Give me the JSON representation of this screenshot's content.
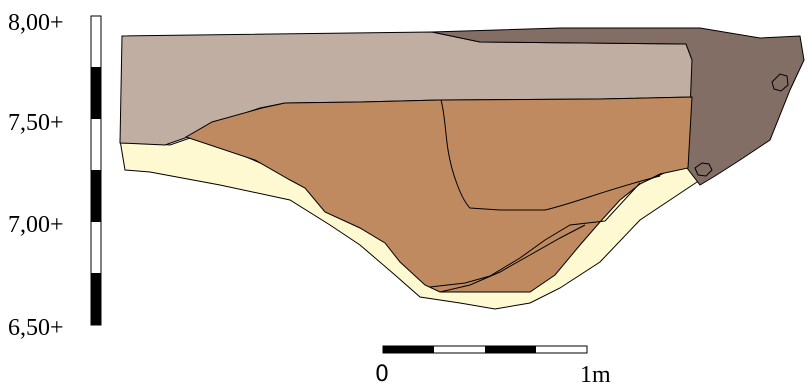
{
  "elevation_scale": {
    "labels": [
      "8,00+",
      "7,50+",
      "7,00+",
      "6,50+"
    ]
  },
  "horizontal_scale": {
    "start_label": "0",
    "end_label": "1m"
  },
  "colors": {
    "upper_fill": "#c0aea2",
    "dark_fill": "#836e66",
    "main_fill": "#c08a60",
    "base_fill": "#fef9d0",
    "outline": "#000000"
  }
}
